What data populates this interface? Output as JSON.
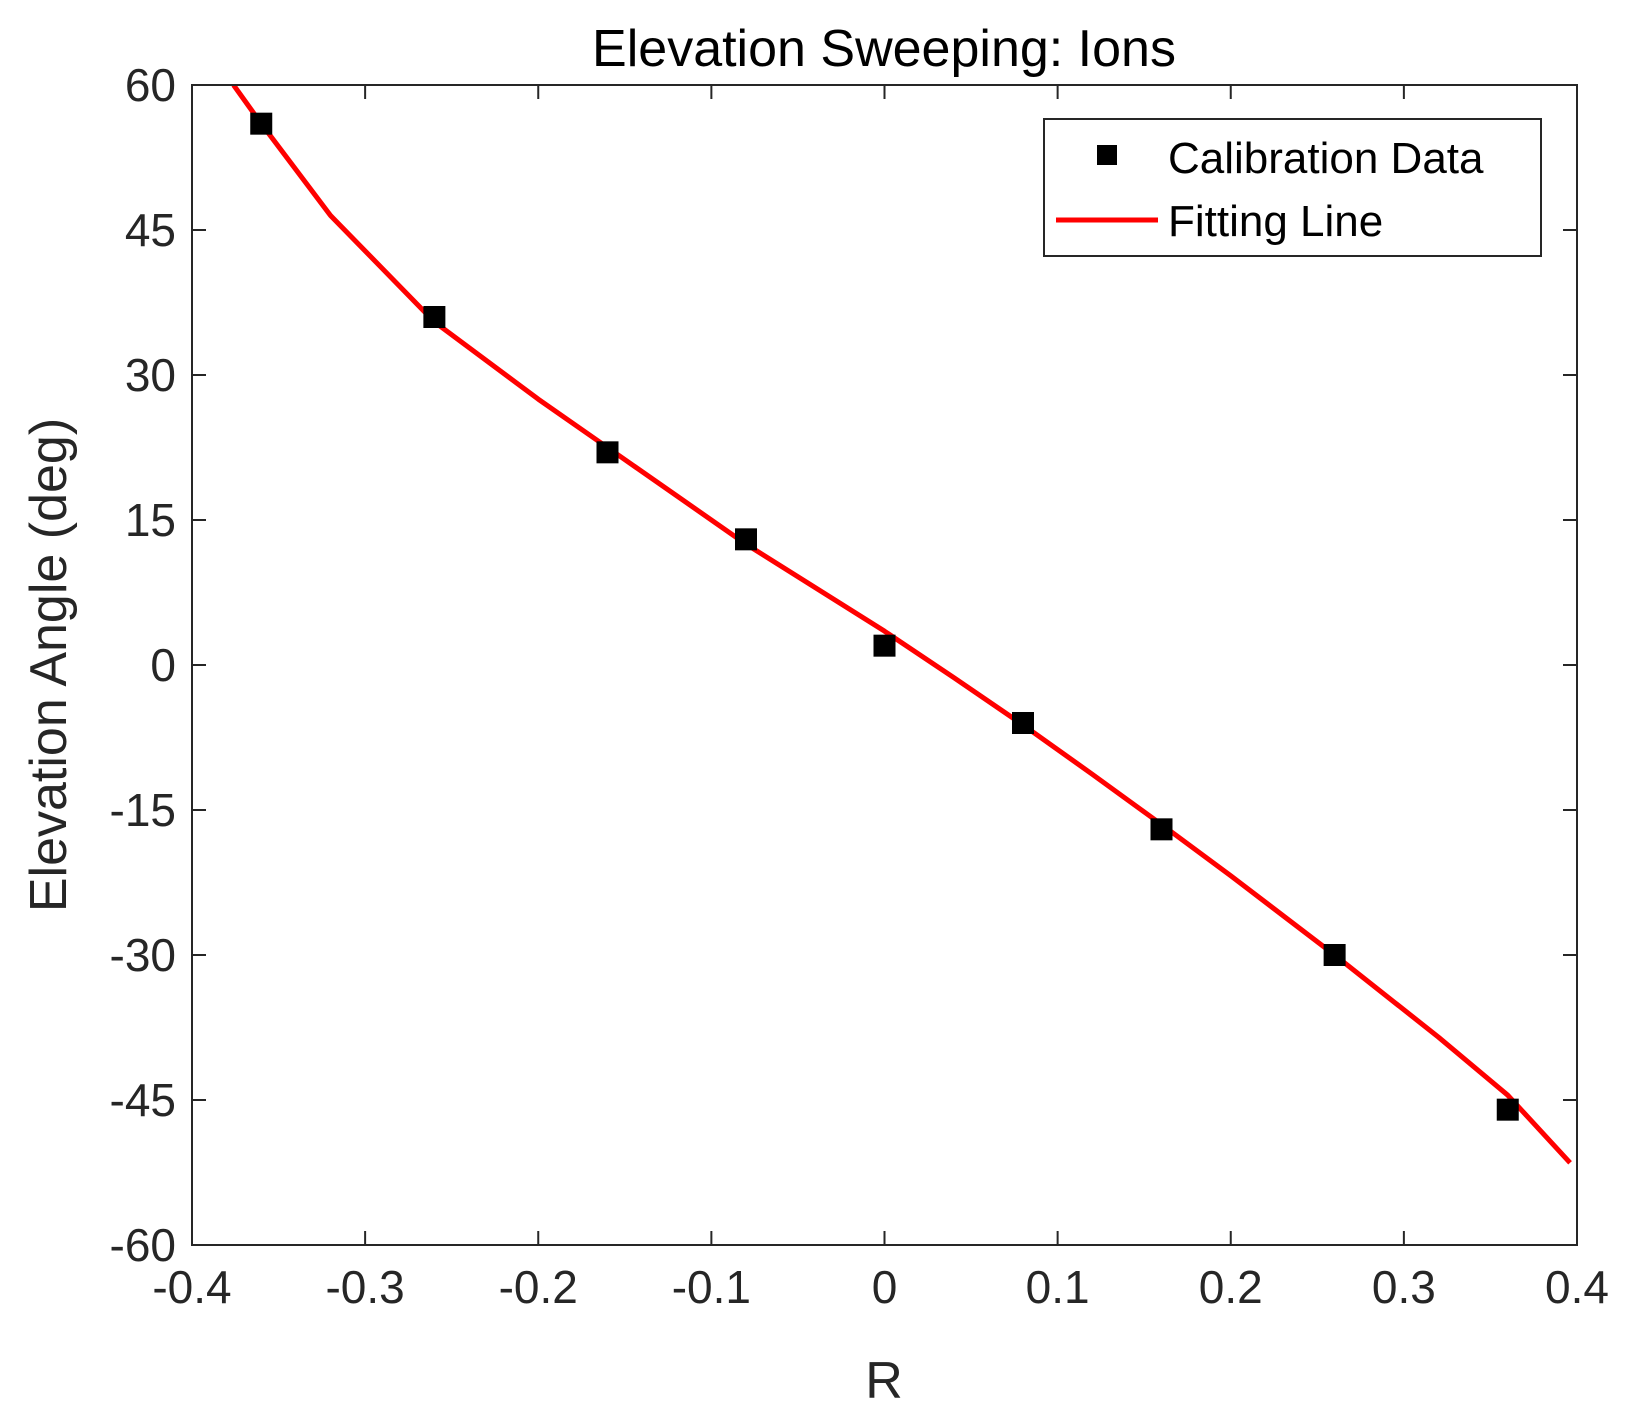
{
  "chart_data": {
    "type": "scatter",
    "title": "Elevation Sweeping: Ions",
    "xlabel": "R",
    "ylabel": "Elevation Angle (deg)",
    "xlim": [
      -0.4,
      0.4
    ],
    "ylim": [
      -60,
      60
    ],
    "xticks": [
      -0.4,
      -0.3,
      -0.2,
      -0.1,
      0,
      0.1,
      0.2,
      0.3,
      0.4
    ],
    "xtick_labels": [
      "-0.4",
      "-0.3",
      "-0.2",
      "-0.1",
      "0",
      "0.1",
      "0.2",
      "0.3",
      "0.4"
    ],
    "yticks": [
      60,
      45,
      30,
      15,
      0,
      -15,
      -30,
      -45,
      -60
    ],
    "ytick_labels": [
      "60",
      "45",
      "30",
      "15",
      "0",
      "-15",
      "-30",
      "-45",
      "-60"
    ],
    "grid": false,
    "legend_position": "top-right",
    "series": [
      {
        "name": "Calibration Data",
        "kind": "markers",
        "marker": "square",
        "color": "#000000",
        "x": [
          -0.36,
          -0.26,
          -0.16,
          -0.08,
          0.0,
          0.08,
          0.16,
          0.26,
          0.36
        ],
        "y": [
          56,
          36,
          22,
          13,
          2,
          -6,
          -17,
          -30,
          -46
        ]
      },
      {
        "name": "Fitting Line",
        "kind": "line",
        "color": "#ff0000",
        "x": [
          -0.376,
          -0.36,
          -0.32,
          -0.26,
          -0.2,
          -0.16,
          -0.12,
          -0.08,
          -0.04,
          0.0,
          0.04,
          0.08,
          0.12,
          0.16,
          0.2,
          0.26,
          0.32,
          0.36,
          0.396
        ],
        "y": [
          60,
          56,
          46.5,
          35.5,
          27.5,
          22.5,
          17.5,
          12.5,
          8,
          3.5,
          -1.3,
          -6.2,
          -11.3,
          -16.5,
          -21.8,
          -30,
          -38.5,
          -44.5,
          -51.5
        ]
      }
    ]
  }
}
